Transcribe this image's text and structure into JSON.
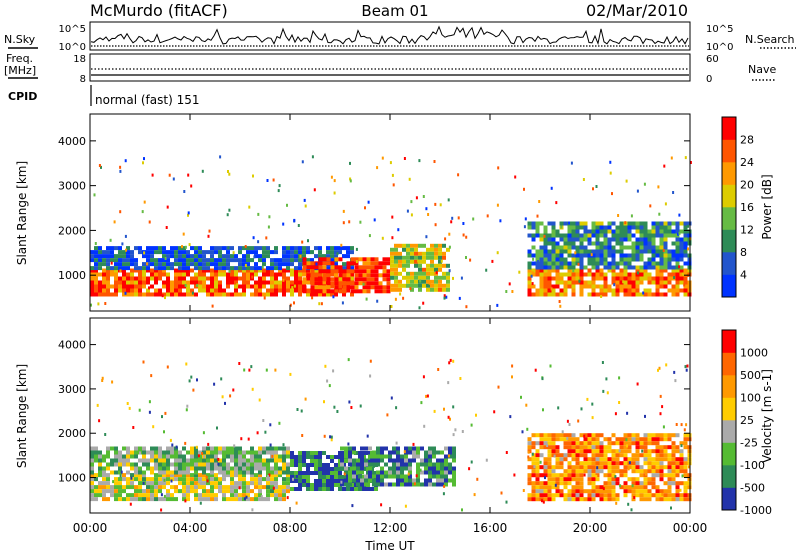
{
  "header": {
    "station": "McMurdo (fitACF)",
    "beam": "Beam 01",
    "date": "02/Mar/2010"
  },
  "top_panels": {
    "nsky_label": "N.Sky",
    "nsearch_label": "N.Search",
    "count_ticks_left": [
      "10^5",
      "10^0"
    ],
    "count_ticks_right": [
      "10^5",
      "10^0"
    ],
    "freq_label_line1": "Freq.",
    "freq_label_line2": "[MHz]",
    "freq_ticks": [
      "18",
      "8"
    ],
    "nave_label": "Nave",
    "nave_ticks": [
      "60",
      "0"
    ],
    "cpid_label": "CPID",
    "cpid_value": "normal (fast) 151"
  },
  "chart_data": [
    {
      "type": "heatmap",
      "quantity": "Power",
      "colorbar_label": "Power [dB]",
      "colorbar_ticks": [
        "28",
        "24",
        "20",
        "16",
        "12",
        "8",
        "4"
      ],
      "colorbar_colors": [
        "#0033ff",
        "#2255cc",
        "#2e8b57",
        "#66bb44",
        "#ddcc00",
        "#ff9900",
        "#ff5500",
        "#ff0000"
      ],
      "ylabel": "Slant Range [km]",
      "yticks": [
        "4000",
        "3000",
        "2000",
        "1000"
      ],
      "ylim": [
        200,
        4600
      ],
      "xlim": [
        0,
        24
      ],
      "bands": [
        {
          "t0": 0.0,
          "t1": 10.5,
          "r0": 550,
          "r1": 1150,
          "level": 0.8
        },
        {
          "t0": 0.0,
          "t1": 10.5,
          "r0": 1150,
          "r1": 1650,
          "level": 0.15
        },
        {
          "t0": 8.5,
          "t1": 12.0,
          "r0": 600,
          "r1": 1400,
          "level": 0.9
        },
        {
          "t0": 12.0,
          "t1": 14.3,
          "r0": 700,
          "r1": 1700,
          "level": 0.55
        },
        {
          "t0": 17.5,
          "t1": 24.0,
          "r0": 550,
          "r1": 1150,
          "level": 0.75
        },
        {
          "t0": 17.5,
          "t1": 24.0,
          "r0": 1150,
          "r1": 2200,
          "level": 0.3
        }
      ]
    },
    {
      "type": "heatmap",
      "quantity": "Velocity",
      "colorbar_label": "Velocity [m s-1]",
      "colorbar_ticks": [
        "1000",
        "500",
        "100",
        "25",
        "-25",
        "-100",
        "-500",
        "-1000"
      ],
      "colorbar_colors": [
        "#2233aa",
        "#2e8b57",
        "#55bb33",
        "#aaaaaa",
        "#ffcc00",
        "#ff9900",
        "#ff6600",
        "#ff0000"
      ],
      "ylabel": "Slant Range [km]",
      "yticks": [
        "4000",
        "3000",
        "2000",
        "1000"
      ],
      "ylim": [
        200,
        4600
      ],
      "xlim": [
        0,
        24
      ],
      "xticks": [
        "00:00",
        "04:00",
        "08:00",
        "12:00",
        "16:00",
        "20:00",
        "00:00"
      ],
      "xlabel": "Time UT",
      "bands": [
        {
          "t0": 0.0,
          "t1": 8.0,
          "r0": 550,
          "r1": 1100,
          "level": 0.45
        },
        {
          "t0": 0.0,
          "t1": 8.0,
          "r0": 1100,
          "r1": 1700,
          "level": 0.35
        },
        {
          "t0": 8.0,
          "t1": 11.5,
          "r0": 700,
          "r1": 1600,
          "level": 0.15
        },
        {
          "t0": 10.0,
          "t1": 14.5,
          "r0": 800,
          "r1": 1700,
          "level": 0.2
        },
        {
          "t0": 17.5,
          "t1": 24.0,
          "r0": 500,
          "r1": 2000,
          "level": 0.7
        }
      ]
    }
  ]
}
